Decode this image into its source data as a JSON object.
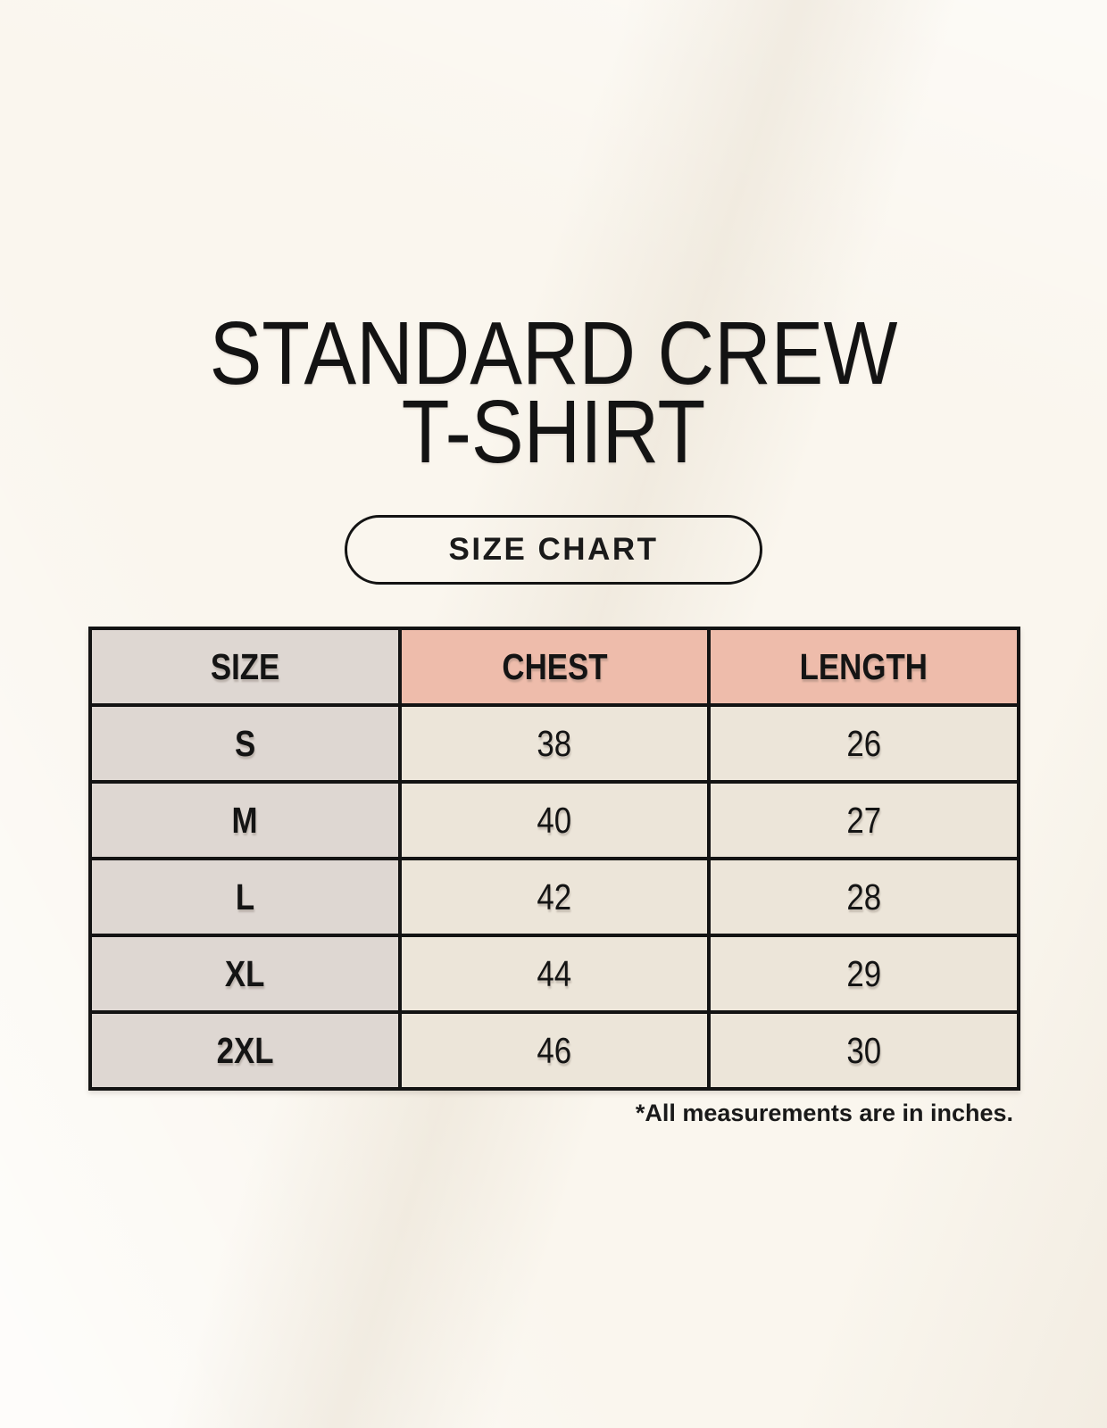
{
  "header": {
    "title_line1": "STANDARD CREW",
    "title_line2": "T-SHIRT",
    "badge_label": "SIZE CHART"
  },
  "chart_data": {
    "type": "table",
    "title": "SIZE CHART",
    "columns": [
      "SIZE",
      "CHEST",
      "LENGTH"
    ],
    "rows": [
      {
        "size": "S",
        "chest": 38,
        "length": 26
      },
      {
        "size": "M",
        "chest": 40,
        "length": 27
      },
      {
        "size": "L",
        "chest": 42,
        "length": 28
      },
      {
        "size": "XL",
        "chest": 44,
        "length": 29
      },
      {
        "size": "2XL",
        "chest": 46,
        "length": 30
      }
    ],
    "units": "inches"
  },
  "footer": {
    "note": "*All measurements are in inches."
  },
  "colors": {
    "background": "#faf6ee",
    "size_column_bg": "#ded7d2",
    "header_accent_bg": "#eebcab",
    "data_cell_bg": "#ece5d9",
    "border": "#131313",
    "text": "#141414"
  }
}
